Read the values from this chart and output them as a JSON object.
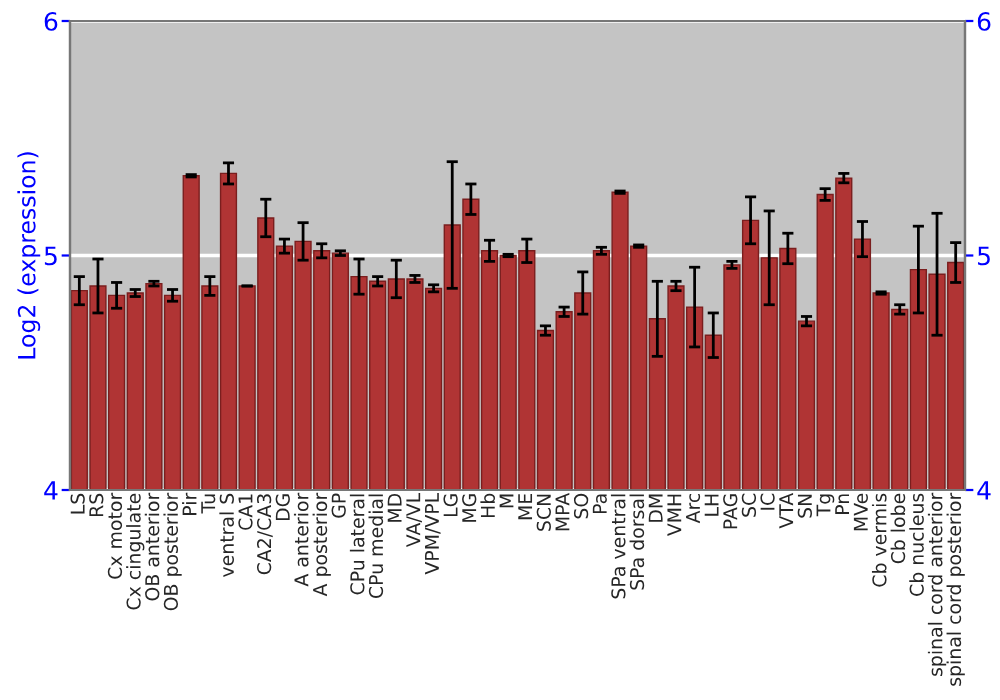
{
  "chart_data": {
    "type": "bar",
    "ylabel": "Log2 (expression)",
    "categories": [
      "LS",
      "RS",
      "Cx motor",
      "Cx cingulate",
      "OB anterior",
      "OB posterior",
      "Pir",
      "Tu",
      "ventral S",
      "CA1",
      "CA2/CA3",
      "DG",
      "A anterior",
      "A posterior",
      "GP",
      "CPu lateral",
      "CPu medial",
      "MD",
      "VA/VL",
      "VPM/VPL",
      "LG",
      "MG",
      "Hb",
      "M",
      "ME",
      "SCN",
      "MPA",
      "SO",
      "Pa",
      "SPa ventral",
      "SPa dorsal",
      "DM",
      "VMH",
      "Arc",
      "LH",
      "PAG",
      "SC",
      "IC",
      "VTA",
      "SN",
      "Tg",
      "Pn",
      "MVe",
      "Cb vermis",
      "Cb lobe",
      "Cb nucleus",
      "spinal cord anterior",
      "spinal cord posterior"
    ],
    "values": [
      4.85,
      4.87,
      4.83,
      4.84,
      4.88,
      4.83,
      5.34,
      4.87,
      5.35,
      4.87,
      5.16,
      5.04,
      5.06,
      5.02,
      5.01,
      4.91,
      4.89,
      4.9,
      4.9,
      4.86,
      5.13,
      5.24,
      5.02,
      5.0,
      5.02,
      4.68,
      4.76,
      4.84,
      5.02,
      5.27,
      5.04,
      4.73,
      4.87,
      4.78,
      4.66,
      4.96,
      5.15,
      4.99,
      5.03,
      4.72,
      5.26,
      5.33,
      5.07,
      4.84,
      4.77,
      4.94,
      4.92,
      4.97
    ],
    "errors": [
      0.06,
      0.115,
      0.055,
      0.015,
      0.01,
      0.025,
      0.005,
      0.04,
      0.045,
      0.0,
      0.08,
      0.03,
      0.08,
      0.03,
      0.01,
      0.075,
      0.02,
      0.08,
      0.015,
      0.015,
      0.27,
      0.065,
      0.045,
      0.005,
      0.05,
      0.02,
      0.02,
      0.09,
      0.015,
      0.005,
      0.005,
      0.16,
      0.02,
      0.17,
      0.095,
      0.015,
      0.1,
      0.2,
      0.065,
      0.02,
      0.025,
      0.02,
      0.075,
      0.005,
      0.02,
      0.185,
      0.26,
      0.085
    ],
    "color": "#b03434",
    "ylim": [
      4,
      6
    ],
    "yticks": [
      4,
      5,
      6
    ],
    "y2lim": [
      4,
      6
    ],
    "y2ticks": [
      4,
      5,
      6
    ],
    "grid": "y"
  }
}
